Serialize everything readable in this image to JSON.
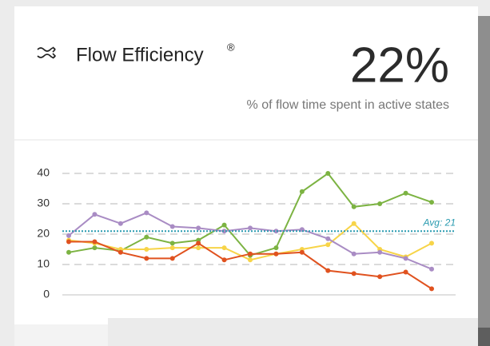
{
  "header": {
    "title": "Flow Efficiency",
    "mark": "®",
    "value": "22%",
    "subtitle": "% of flow time spent in active states"
  },
  "chart_data": {
    "type": "line",
    "x": [
      0,
      1,
      2,
      3,
      4,
      5,
      6,
      7,
      8,
      9,
      10,
      11,
      12,
      13,
      14
    ],
    "xlim": [
      0,
      14
    ],
    "ylim": [
      0,
      40
    ],
    "yticks": [
      0,
      10,
      20,
      30,
      40
    ],
    "grid": true,
    "series": [
      {
        "color": "#7cb342",
        "values": [
          14,
          15.5,
          14.5,
          19,
          17,
          18,
          23,
          13,
          15.5,
          34,
          40,
          29,
          30,
          33.5,
          30.5
        ]
      },
      {
        "color": "#f7d448",
        "values": [
          18,
          17,
          15,
          15,
          15.5,
          15.5,
          15.5,
          11.5,
          13.5,
          15,
          16.5,
          23.5,
          15,
          12.5,
          17
        ]
      },
      {
        "color": "#e0521f",
        "values": [
          17.5,
          17.5,
          14,
          12,
          12,
          17,
          11.5,
          13.5,
          13.5,
          14,
          8,
          7,
          6,
          7.5,
          2
        ]
      },
      {
        "color": "#a98cc4",
        "values": [
          19.5,
          26.5,
          23.5,
          27,
          22.5,
          22,
          21,
          22,
          21,
          21.5,
          18.5,
          13.5,
          14,
          12,
          8.5
        ]
      }
    ],
    "avg": 21,
    "avg_label": "Avg: 21",
    "avg_color": "#2a9bb0"
  }
}
